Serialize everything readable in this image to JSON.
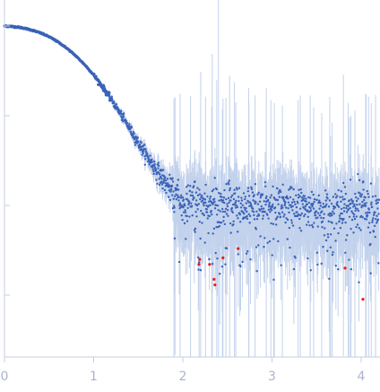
{
  "chart_data": {
    "type": "scatter",
    "title": "",
    "xlabel": "",
    "ylabel": "",
    "xlim": [
      0,
      4.2
    ],
    "y_scale": "log",
    "x_ticks": [
      "0",
      "1",
      "2",
      "3",
      "4"
    ],
    "grid": false,
    "legend": "none",
    "colors": {
      "points": "#3a63b8",
      "error_bars": "#c3d2ec",
      "outliers": "#e0201a",
      "axis": "#c5cde0",
      "tick_text": "#aab4cc"
    },
    "series": [
      {
        "description": "intensity curve",
        "curve": [
          [
            0.0,
            1.0
          ],
          [
            0.1,
            0.985
          ],
          [
            0.2,
            0.955
          ],
          [
            0.3,
            0.905
          ],
          [
            0.4,
            0.84
          ],
          [
            0.5,
            0.76
          ],
          [
            0.6,
            0.665
          ],
          [
            0.7,
            0.565
          ],
          [
            0.8,
            0.465
          ],
          [
            0.9,
            0.37
          ],
          [
            1.0,
            0.285
          ],
          [
            1.1,
            0.21
          ],
          [
            1.2,
            0.15
          ],
          [
            1.3,
            0.105
          ],
          [
            1.4,
            0.073
          ],
          [
            1.5,
            0.05
          ],
          [
            1.6,
            0.035
          ],
          [
            1.7,
            0.025
          ],
          [
            1.8,
            0.018
          ],
          [
            1.9,
            0.0135
          ],
          [
            2.0,
            0.0115
          ],
          [
            2.2,
            0.0105
          ],
          [
            2.5,
            0.0102
          ],
          [
            3.0,
            0.01
          ],
          [
            3.5,
            0.0098
          ],
          [
            4.2,
            0.0095
          ]
        ]
      }
    ],
    "outliers": [
      [
        2.18,
        0.0022
      ],
      [
        2.19,
        0.0025
      ],
      [
        2.3,
        0.0022
      ],
      [
        2.35,
        0.0015
      ],
      [
        2.36,
        0.0013
      ],
      [
        2.45,
        0.0026
      ],
      [
        2.62,
        0.0033
      ],
      [
        3.82,
        0.002
      ],
      [
        4.02,
        0.0009
      ]
    ]
  }
}
